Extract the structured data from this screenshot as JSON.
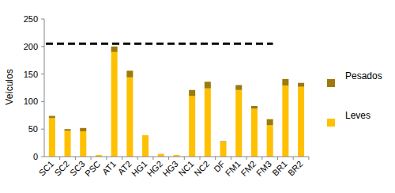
{
  "chart_data": {
    "type": "bar",
    "stacked": true,
    "y_label": "Veículos",
    "categories": [
      "SC1",
      "SC2",
      "SC3",
      "PSC",
      "AT1",
      "AT2",
      "HG1",
      "HG2",
      "HG3",
      "NC1",
      "NC2",
      "DF",
      "FM1",
      "FM2",
      "FM3",
      "BR1",
      "BR2"
    ],
    "series": [
      {
        "name": "Leves",
        "color": "#ffc000",
        "values": [
          70,
          47,
          46,
          3,
          190,
          144,
          39,
          5,
          3,
          110,
          124,
          27,
          121,
          87,
          57,
          129,
          127
        ]
      },
      {
        "name": "Pesados",
        "color": "#9c7a0c",
        "values": [
          4,
          3,
          6,
          0,
          10,
          12,
          0,
          0,
          0,
          11,
          12,
          1,
          9,
          5,
          11,
          12,
          7
        ]
      }
    ],
    "reference_line": {
      "value": 205,
      "from": "SC1",
      "to": "FM3",
      "line_style": "dashed",
      "color": "#000000"
    },
    "ylim": [
      0,
      250
    ],
    "yticks": [
      0,
      50,
      100,
      150,
      200,
      250
    ],
    "grid": false,
    "legend": "right"
  }
}
